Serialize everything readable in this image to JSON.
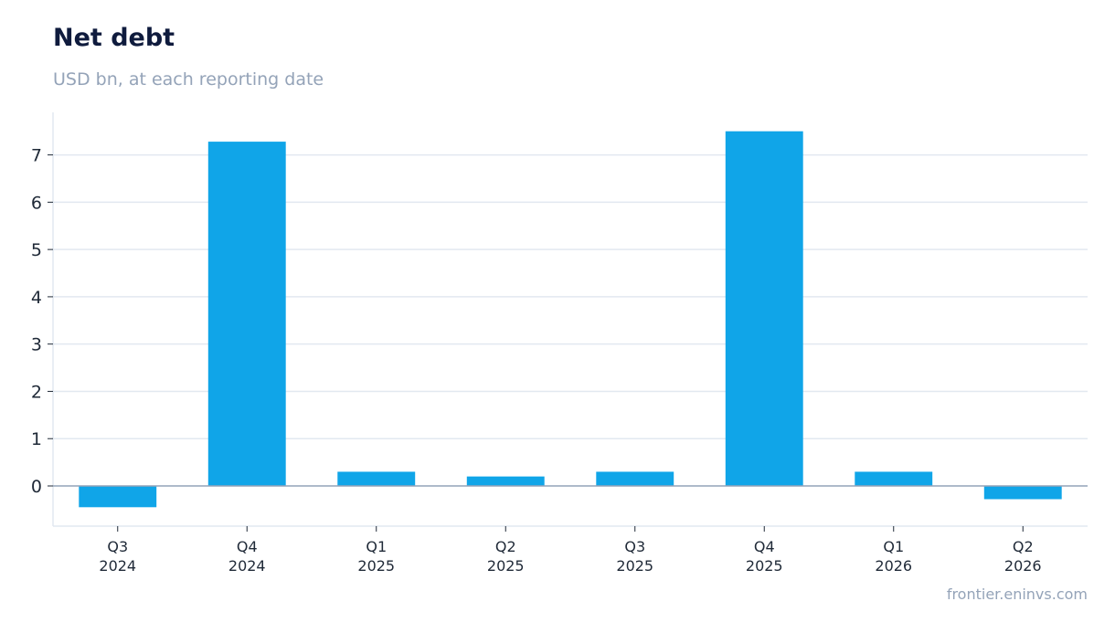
{
  "header": {
    "title": "Net debt",
    "subtitle": "USD bn, at each reporting date"
  },
  "footer": {
    "source": "frontier.eninvs.com"
  },
  "colors": {
    "bar": "#10a5e8",
    "grid": "#e2e8f0",
    "zero_line": "#94a3b8",
    "axis": "#e2e8f0"
  },
  "chart_data": {
    "type": "bar",
    "categories": [
      [
        "Q3",
        "2024"
      ],
      [
        "Q4",
        "2024"
      ],
      [
        "Q1",
        "2025"
      ],
      [
        "Q2",
        "2025"
      ],
      [
        "Q3",
        "2025"
      ],
      [
        "Q4",
        "2025"
      ],
      [
        "Q1",
        "2026"
      ],
      [
        "Q2",
        "2026"
      ]
    ],
    "values": [
      -0.45,
      7.28,
      0.3,
      0.2,
      0.3,
      7.5,
      0.3,
      -0.28
    ],
    "title": "Net debt",
    "subtitle": "USD bn, at each reporting date",
    "xlabel": "",
    "ylabel": "",
    "ylim": [
      -0.85,
      7.9
    ],
    "yticks": [
      0,
      1,
      2,
      3,
      4,
      5,
      6,
      7
    ],
    "grid": "horizontal",
    "legend": "none"
  }
}
